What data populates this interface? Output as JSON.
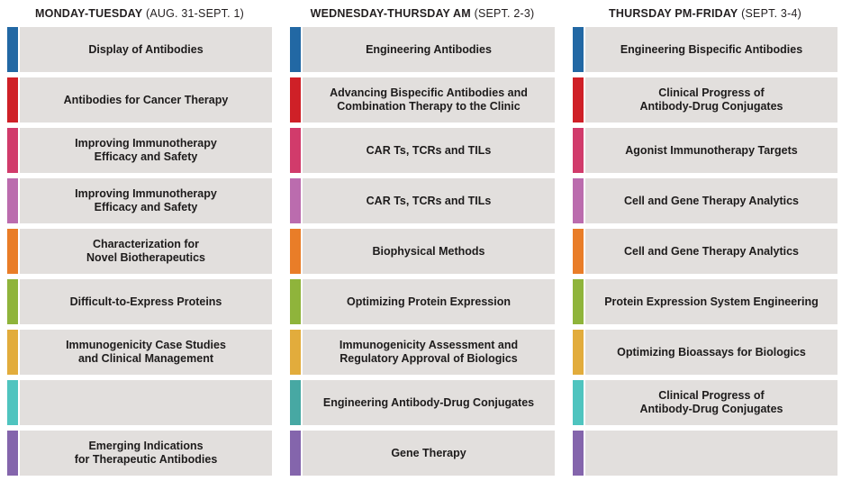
{
  "colors": {
    "cell_background": "#e2dfdd",
    "text": "#1d1b1b"
  },
  "columns": [
    {
      "header": {
        "title": "MONDAY-TUESDAY",
        "dates": " (AUG. 31-SEPT. 1)"
      },
      "rows": [
        {
          "label": "Display of Antibodies",
          "color": "#2268a4"
        },
        {
          "label": "Antibodies for Cancer Therapy",
          "color": "#cf2027"
        },
        {
          "label": "Improving Immunotherapy\nEfficacy and Safety",
          "color": "#d13b6b"
        },
        {
          "label": "Improving Immunotherapy\nEfficacy and Safety",
          "color": "#bb6cae"
        },
        {
          "label": "Characterization for\nNovel Biotherapeutics",
          "color": "#e97d28"
        },
        {
          "label": "Difficult-to-Express Proteins",
          "color": "#8fb43b"
        },
        {
          "label": "Immunogenicity Case Studies\nand Clinical Management",
          "color": "#e2ac3c"
        },
        {
          "label": "",
          "color": "#4fc4bf"
        },
        {
          "label": "Emerging Indications\nfor Therapeutic Antibodies",
          "color": "#8465ac"
        }
      ]
    },
    {
      "header": {
        "title": "WEDNESDAY-THURSDAY AM",
        "dates": " (SEPT. 2-3)"
      },
      "rows": [
        {
          "label": "Engineering Antibodies",
          "color": "#2268a4"
        },
        {
          "label": "Advancing Bispecific Antibodies and\nCombination Therapy to the Clinic",
          "color": "#cf2027"
        },
        {
          "label": "CAR Ts, TCRs and TILs",
          "color": "#d13b6b"
        },
        {
          "label": "CAR Ts, TCRs and TILs",
          "color": "#bb6cae"
        },
        {
          "label": "Biophysical Methods",
          "color": "#e97d28"
        },
        {
          "label": "Optimizing Protein Expression",
          "color": "#8fb43b"
        },
        {
          "label": "Immunogenicity Assessment and\nRegulatory Approval of Biologics",
          "color": "#e2ac3c"
        },
        {
          "label": "Engineering Antibody-Drug Conjugates",
          "color": "#47a8a3"
        },
        {
          "label": "Gene Therapy",
          "color": "#8465ac"
        }
      ]
    },
    {
      "header": {
        "title": "THURSDAY PM-FRIDAY",
        "dates": " (SEPT. 3-4)"
      },
      "rows": [
        {
          "label": "Engineering Bispecific Antibodies",
          "color": "#2268a4"
        },
        {
          "label": "Clinical Progress of\nAntibody-Drug Conjugates",
          "color": "#cf2027"
        },
        {
          "label": "Agonist Immunotherapy Targets",
          "color": "#d13b6b"
        },
        {
          "label": "Cell and Gene Therapy Analytics",
          "color": "#bb6cae"
        },
        {
          "label": "Cell and Gene Therapy Analytics",
          "color": "#e97d28"
        },
        {
          "label": "Protein Expression System Engineering",
          "color": "#8fb43b"
        },
        {
          "label": "Optimizing Bioassays for Biologics",
          "color": "#e2ac3c"
        },
        {
          "label": "Clinical Progress of\nAntibody-Drug Conjugates",
          "color": "#4fc4bf"
        },
        {
          "label": "",
          "color": "#8465ac"
        }
      ]
    }
  ]
}
